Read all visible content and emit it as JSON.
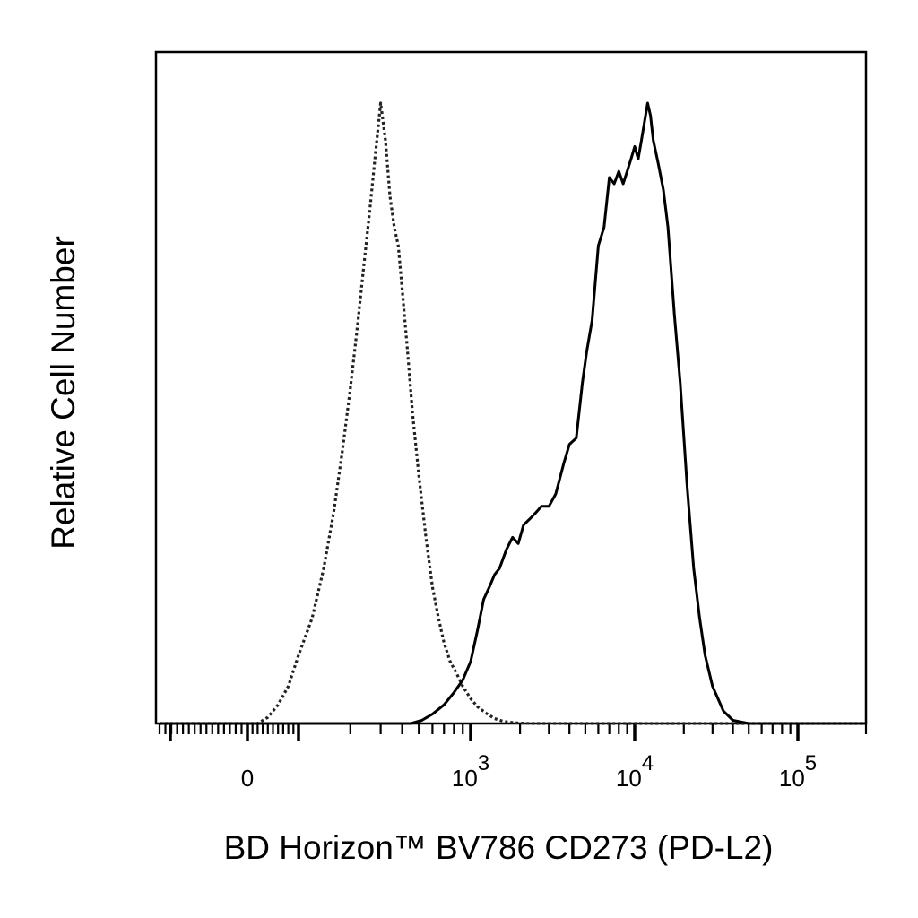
{
  "chart_data": {
    "type": "line",
    "title": "",
    "xlabel": "BD Horizon™ BV786 CD273 (PD-L2)",
    "ylabel": "Relative Cell Number",
    "x_scale": "biexponential (linear near 0, log above)",
    "xlim": [
      -300,
      200000
    ],
    "ylim": [
      0,
      1
    ],
    "grid": false,
    "legend": "none",
    "x_ticks": [
      {
        "value": 0,
        "base": "0",
        "exp": ""
      },
      {
        "value": 1000,
        "base": "10",
        "exp": "3"
      },
      {
        "value": 10000,
        "base": "10",
        "exp": "4"
      },
      {
        "value": 100000,
        "base": "10",
        "exp": "5"
      }
    ],
    "series": [
      {
        "style": "dotted",
        "color": "#222222",
        "x": [
          -300,
          20,
          40,
          60,
          80,
          100,
          120,
          140,
          160,
          180,
          200,
          220,
          240,
          260,
          280,
          300,
          320,
          340,
          360,
          380,
          400,
          430,
          460,
          500,
          550,
          600,
          650,
          700,
          760,
          830,
          900,
          1000,
          1100,
          1250,
          1400,
          1600,
          1900,
          2300,
          3000,
          200000
        ],
        "values": [
          0,
          0,
          0.01,
          0.03,
          0.06,
          0.11,
          0.17,
          0.25,
          0.34,
          0.44,
          0.54,
          0.64,
          0.74,
          0.83,
          0.92,
          1.0,
          0.94,
          0.85,
          0.8,
          0.77,
          0.7,
          0.6,
          0.5,
          0.4,
          0.3,
          0.22,
          0.17,
          0.13,
          0.1,
          0.08,
          0.06,
          0.04,
          0.027,
          0.016,
          0.008,
          0.003,
          0.001,
          0,
          0,
          0
        ]
      },
      {
        "style": "solid",
        "color": "#000000",
        "x": [
          -300,
          450,
          520,
          600,
          700,
          800,
          900,
          1000,
          1100,
          1200,
          1300,
          1400,
          1500,
          1650,
          1800,
          1950,
          2100,
          2300,
          2500,
          2700,
          3000,
          3300,
          3700,
          4000,
          4400,
          4800,
          5100,
          5500,
          6000,
          6500,
          7000,
          7500,
          8000,
          8500,
          9000,
          9500,
          10000,
          10500,
          11000,
          12000,
          12500,
          13000,
          13500,
          14000,
          15000,
          16000,
          17500,
          19000,
          21000,
          23000,
          25000,
          27000,
          30000,
          35000,
          40000,
          50000,
          60000,
          200000
        ],
        "values": [
          0,
          0,
          0.005,
          0.015,
          0.03,
          0.05,
          0.07,
          0.1,
          0.15,
          0.2,
          0.22,
          0.24,
          0.25,
          0.28,
          0.3,
          0.29,
          0.32,
          0.33,
          0.34,
          0.35,
          0.35,
          0.37,
          0.42,
          0.45,
          0.46,
          0.55,
          0.6,
          0.65,
          0.77,
          0.8,
          0.88,
          0.87,
          0.89,
          0.87,
          0.89,
          0.91,
          0.93,
          0.91,
          0.94,
          1.0,
          0.98,
          0.94,
          0.92,
          0.9,
          0.86,
          0.8,
          0.66,
          0.55,
          0.38,
          0.25,
          0.17,
          0.11,
          0.06,
          0.02,
          0.005,
          0,
          0,
          0
        ]
      }
    ]
  }
}
